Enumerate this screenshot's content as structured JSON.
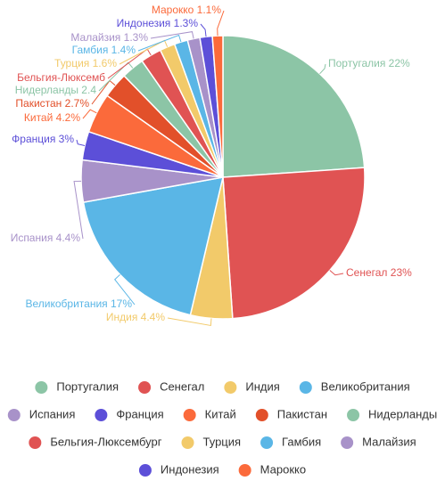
{
  "chart_data": {
    "type": "pie",
    "categories": [
      "Португалия",
      "Сенегал",
      "Индия",
      "Великобритания",
      "Испания",
      "Франция",
      "Китай",
      "Пакистан",
      "Нидерланды",
      "Бельгия-Люксембург",
      "Турция",
      "Гамбия",
      "Малайзия",
      "Индонезия",
      "Марокко"
    ],
    "values": [
      22,
      23,
      4.4,
      17,
      4.4,
      3,
      4.2,
      2.7,
      2.4,
      2.2,
      1.6,
      1.4,
      1.3,
      1.3,
      1.1
    ],
    "value_labels": [
      "Португалия 22%",
      "Сенегал 23%",
      "Индия 4.4%",
      "Великобритания 17%",
      "Испания 4.4%",
      "Франция 3%",
      "Китай 4.2%",
      "Пакистан 2.7%",
      "Нидерланды 2.4",
      "Бельгия-Люксемб",
      "Турция 1.6%",
      "Гамбия 1.4%",
      "Малайзия 1.3%",
      "Индонезия 1.3%",
      "Марокко 1.1%"
    ],
    "colors": [
      "#8cc5a6",
      "#e05353",
      "#f2ca6a",
      "#5ab6e6",
      "#a892c9",
      "#5c4fd8",
      "#fb6a3b",
      "#e2502a",
      "#8cc5a6",
      "#e05353",
      "#f2ca6a",
      "#5ab6e6",
      "#a892c9",
      "#5c4fd8",
      "#fb6a3b"
    ],
    "legend": "bottom"
  }
}
